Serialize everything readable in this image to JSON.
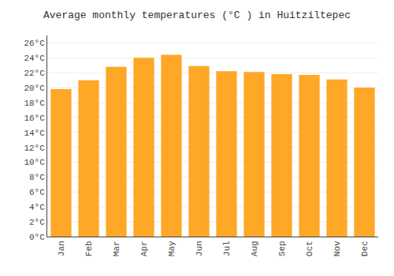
{
  "chart_data": {
    "type": "bar",
    "title": "Average monthly temperatures (°C ) in Huitziltepec",
    "categories": [
      "Jan",
      "Feb",
      "Mar",
      "Apr",
      "May",
      "Jun",
      "Jul",
      "Aug",
      "Sep",
      "Oct",
      "Nov",
      "Dec"
    ],
    "values": [
      19.8,
      21.0,
      22.8,
      24.0,
      24.4,
      22.9,
      22.2,
      22.1,
      21.8,
      21.7,
      21.1,
      20.0
    ],
    "color": "#FFA726",
    "ylim": [
      0,
      27
    ],
    "yticks": [
      {
        "value": 0,
        "label": "0°C"
      },
      {
        "value": 2,
        "label": "2°C"
      },
      {
        "value": 4,
        "label": "4°C"
      },
      {
        "value": 6,
        "label": "6°C"
      },
      {
        "value": 8,
        "label": "8°C"
      },
      {
        "value": 10,
        "label": "10°C"
      },
      {
        "value": 12,
        "label": "12°C"
      },
      {
        "value": 14,
        "label": "14°C"
      },
      {
        "value": 16,
        "label": "16°C"
      },
      {
        "value": 18,
        "label": "18°C"
      },
      {
        "value": 20,
        "label": "20°C"
      },
      {
        "value": 22,
        "label": "22°C"
      },
      {
        "value": 24,
        "label": "24°C"
      },
      {
        "value": 26,
        "label": "26°C"
      }
    ],
    "grid": true
  }
}
